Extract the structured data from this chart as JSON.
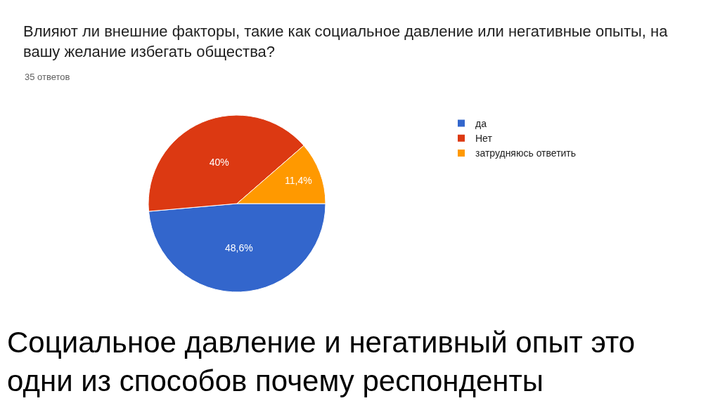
{
  "chart_data": {
    "type": "pie",
    "title": "Влияют ли внешние факторы, такие как социальное давление или негативные опыты, на вашу желание избегать общества?",
    "subtitle": "35 ответов",
    "categories": [
      "да",
      "Нет",
      "затрудняюсь ответить"
    ],
    "values": [
      48.6,
      40,
      11.4
    ],
    "value_labels": [
      "48,6%",
      "40%",
      "11,4%"
    ],
    "colors": [
      "#3366cc",
      "#dc3912",
      "#ff9900"
    ],
    "legend": "top right",
    "annotations": [
      "Социальное давление и негативный опыт это одни из способов почему респонденты"
    ]
  }
}
